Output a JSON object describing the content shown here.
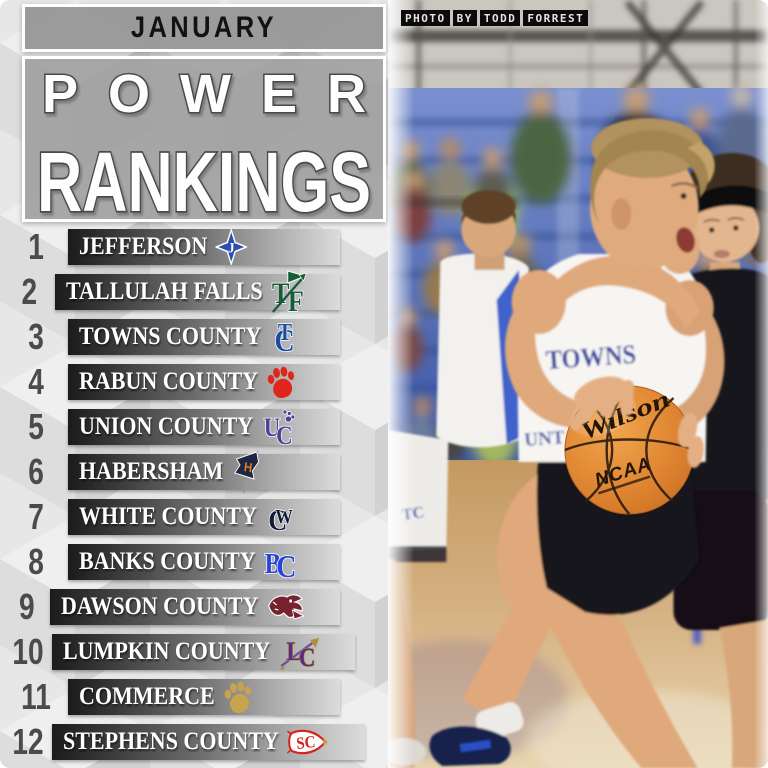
{
  "header": {
    "month": "JANUARY",
    "title_line1": "POWER",
    "title_line2": "RANKINGS"
  },
  "photo": {
    "credit_words": [
      "PHOTO",
      "BY",
      "TODD",
      "FORREST"
    ],
    "jersey_text": "TOWNS",
    "jersey_text_partial": "UNT",
    "jersey_logo_text": "TC",
    "ball_brand": "Wilson",
    "ball_league": "NCAA"
  },
  "rankings": [
    {
      "rank": "1",
      "team": "JEFFERSON",
      "logo": "jefferson-diamond",
      "color": "#2a4fae"
    },
    {
      "rank": "2",
      "team": "TALLULAH FALLS",
      "logo": "tallulah-falls-tf",
      "color": "#175c38"
    },
    {
      "rank": "3",
      "team": "TOWNS COUNTY",
      "logo": "towns-county-tc",
      "color": "#1d4e9e"
    },
    {
      "rank": "4",
      "team": "RABUN COUNTY",
      "logo": "rabun-paw",
      "color": "#e0251c"
    },
    {
      "rank": "5",
      "team": "UNION COUNTY",
      "logo": "union-uc-paw",
      "color": "#4f3f96"
    },
    {
      "rank": "6",
      "team": "HABERSHAM",
      "logo": "habersham-flag",
      "color": "#1d2642"
    },
    {
      "rank": "7",
      "team": "WHITE COUNTY",
      "logo": "white-county-wc",
      "color": "#111c38"
    },
    {
      "rank": "8",
      "team": "BANKS COUNTY",
      "logo": "banks-county-bc",
      "color": "#2744d8"
    },
    {
      "rank": "9",
      "team": "DAWSON COUNTY",
      "logo": "dawson-tiger",
      "color": "#77222f"
    },
    {
      "rank": "10",
      "team": "LUMPKIN COUNTY",
      "logo": "lumpkin-lc-arrow",
      "color": "#5a2d82"
    },
    {
      "rank": "11",
      "team": "COMMERCE",
      "logo": "commerce-paw",
      "color": "#c7a34f"
    },
    {
      "rank": "12",
      "team": "STEPHENS COUNTY",
      "logo": "stephens-arrowhead",
      "color": "#d4231f"
    }
  ],
  "colors": {
    "banner_gray": "#9a9a9a",
    "title_fill": "#fefefe",
    "title_outline": "#4a4a4a",
    "rank_number": "#4b4b4b",
    "bar_dark": "#1b1b1b",
    "bar_light": "#dcdcdc",
    "jersey_navy": "#2b3f9e",
    "bleacher_blue": "#4a63b5",
    "floor_tan": "#d2ab76",
    "ball_orange": "#dd8330"
  }
}
